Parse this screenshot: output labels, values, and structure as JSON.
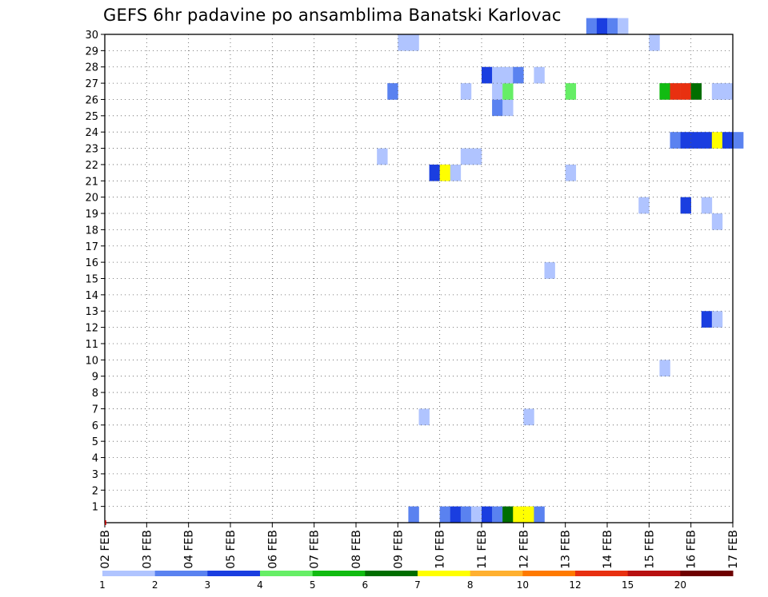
{
  "chart_data": {
    "type": "heatmap",
    "title": "GEFS 6hr padavine po ansamblima Banatski Karlovac",
    "xlabel": "",
    "ylabel": "",
    "x_tick_labels": [
      "02 FEB",
      "03 FEB",
      "04 FEB",
      "05 FEB",
      "06 FEB",
      "07 FEB",
      "08 FEB",
      "09 FEB",
      "10 FEB",
      "11 FEB",
      "12 FEB",
      "13 FEB",
      "14 FEB",
      "15 FEB",
      "16 FEB",
      "17 FEB"
    ],
    "y_tick_labels": [
      "1",
      "2",
      "3",
      "4",
      "5",
      "6",
      "7",
      "8",
      "9",
      "10",
      "11",
      "12",
      "13",
      "14",
      "15",
      "16",
      "17",
      "18",
      "19",
      "20",
      "21",
      "22",
      "23",
      "24",
      "25",
      "26",
      "27",
      "28",
      "29",
      "30"
    ],
    "x_range_days": [
      0,
      15
    ],
    "y_range": [
      0,
      30
    ],
    "grid": true,
    "legend": {
      "placement": "bottom",
      "boundaries": [
        "1",
        "2",
        "3",
        "4",
        "5",
        "6",
        "7",
        "8",
        "10",
        "12",
        "15",
        "20"
      ],
      "colors": [
        "#b0c4ff",
        "#5a82f0",
        "#1a3ee0",
        "#66ee66",
        "#11bb11",
        "#006e00",
        "#ffff00",
        "#ffb030",
        "#ff7a00",
        "#e83010",
        "#b81010",
        "#6e0000"
      ]
    },
    "color_classes": [
      "#b0c4ff",
      "#5a82f0",
      "#1a3ee0",
      "#66ee66",
      "#11bb11",
      "#006e00",
      "#ffff00",
      "#ffb030",
      "#ff7a00",
      "#e83010",
      "#b81010",
      "#6e0000"
    ],
    "cells_note_units": "member (y), day offset from 02 FEB 00Z (x), class index into color_classes",
    "cells": [
      {
        "m": 0,
        "d": 7.25,
        "c": 1
      },
      {
        "m": 0,
        "d": 8.0,
        "c": 1
      },
      {
        "m": 0,
        "d": 8.25,
        "c": 2
      },
      {
        "m": 0,
        "d": 8.5,
        "c": 1
      },
      {
        "m": 0,
        "d": 8.75,
        "c": 0
      },
      {
        "m": 0,
        "d": 9.0,
        "c": 2
      },
      {
        "m": 0,
        "d": 9.25,
        "c": 1
      },
      {
        "m": 0,
        "d": 9.5,
        "c": 5
      },
      {
        "m": 0,
        "d": 9.75,
        "c": 6
      },
      {
        "m": 0,
        "d": 10.0,
        "c": 6
      },
      {
        "m": 0,
        "d": 10.25,
        "c": 1
      },
      {
        "m": 6,
        "d": 7.5,
        "c": 0
      },
      {
        "m": 6,
        "d": 10.0,
        "c": 0
      },
      {
        "m": 9,
        "d": 13.25,
        "c": 0
      },
      {
        "m": 12,
        "d": 14.25,
        "c": 2
      },
      {
        "m": 12,
        "d": 14.5,
        "c": 0
      },
      {
        "m": 15,
        "d": 10.5,
        "c": 0
      },
      {
        "m": 18,
        "d": 14.5,
        "c": 0
      },
      {
        "m": 19,
        "d": 12.75,
        "c": 0
      },
      {
        "m": 19,
        "d": 13.75,
        "c": 2
      },
      {
        "m": 19,
        "d": 14.25,
        "c": 0
      },
      {
        "m": 21,
        "d": 7.75,
        "c": 2
      },
      {
        "m": 21,
        "d": 8.0,
        "c": 6
      },
      {
        "m": 21,
        "d": 8.25,
        "c": 0
      },
      {
        "m": 21,
        "d": 11.0,
        "c": 0
      },
      {
        "m": 22,
        "d": 6.5,
        "c": 0
      },
      {
        "m": 22,
        "d": 8.5,
        "c": 0
      },
      {
        "m": 22,
        "d": 8.75,
        "c": 0
      },
      {
        "m": 23,
        "d": 13.5,
        "c": 1
      },
      {
        "m": 23,
        "d": 13.75,
        "c": 2
      },
      {
        "m": 23,
        "d": 14.0,
        "c": 2
      },
      {
        "m": 23,
        "d": 14.25,
        "c": 2
      },
      {
        "m": 23,
        "d": 14.5,
        "c": 6
      },
      {
        "m": 23,
        "d": 14.75,
        "c": 2
      },
      {
        "m": 23,
        "d": 15.0,
        "c": 1
      },
      {
        "m": 25,
        "d": 9.25,
        "c": 1
      },
      {
        "m": 25,
        "d": 9.5,
        "c": 0
      },
      {
        "m": 26,
        "d": 6.75,
        "c": 1
      },
      {
        "m": 26,
        "d": 8.5,
        "c": 0
      },
      {
        "m": 26,
        "d": 9.25,
        "c": 0
      },
      {
        "m": 26,
        "d": 9.5,
        "c": 3
      },
      {
        "m": 26,
        "d": 11.0,
        "c": 3
      },
      {
        "m": 26,
        "d": 13.25,
        "c": 4
      },
      {
        "m": 26,
        "d": 13.5,
        "c": 9
      },
      {
        "m": 26,
        "d": 13.75,
        "c": 9
      },
      {
        "m": 26,
        "d": 14.0,
        "c": 5
      },
      {
        "m": 26,
        "d": 14.5,
        "c": 0
      },
      {
        "m": 26,
        "d": 14.75,
        "c": 0
      },
      {
        "m": 27,
        "d": 9.0,
        "c": 2
      },
      {
        "m": 27,
        "d": 9.25,
        "c": 0
      },
      {
        "m": 27,
        "d": 9.5,
        "c": 0
      },
      {
        "m": 27,
        "d": 9.75,
        "c": 1
      },
      {
        "m": 27,
        "d": 10.25,
        "c": 0
      },
      {
        "m": 29,
        "d": 7.0,
        "c": 0
      },
      {
        "m": 29,
        "d": 7.25,
        "c": 0
      },
      {
        "m": 29,
        "d": 13.0,
        "c": 0
      },
      {
        "m": 30,
        "d": 11.5,
        "c": 1
      },
      {
        "m": 30,
        "d": 11.75,
        "c": 2
      },
      {
        "m": 30,
        "d": 12.0,
        "c": 1
      },
      {
        "m": 30,
        "d": 12.25,
        "c": 0
      }
    ]
  }
}
